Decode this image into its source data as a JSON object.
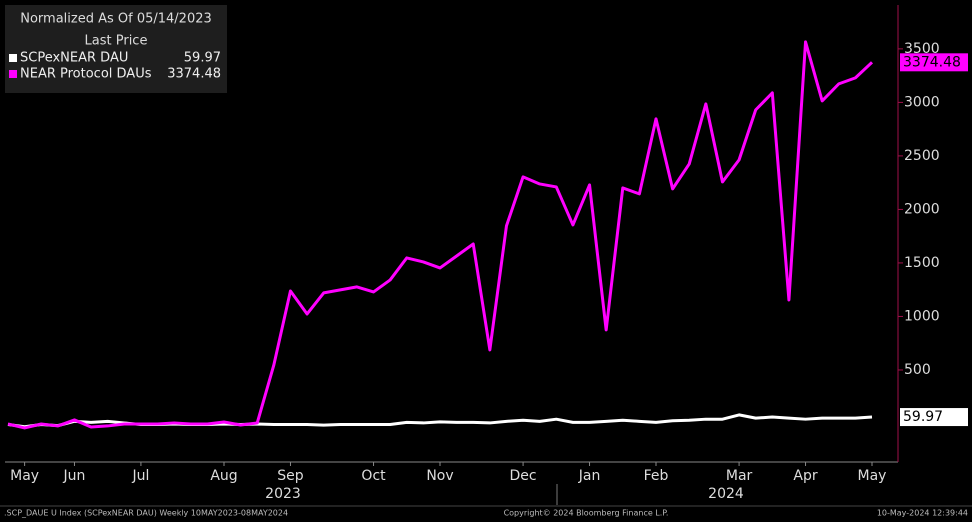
{
  "chart_data": {
    "type": "line",
    "legend_title": "Normalized As Of 05/14/2023",
    "legend_subtitle": "Last Price",
    "categories": [
      null,
      "May",
      null,
      null,
      "Jun",
      null,
      null,
      null,
      "Jul",
      null,
      null,
      null,
      null,
      "Aug",
      null,
      null,
      null,
      "Sep",
      null,
      null,
      null,
      null,
      "Oct",
      null,
      null,
      null,
      "Nov",
      null,
      null,
      null,
      null,
      "Dec",
      null,
      null,
      null,
      "Jan",
      null,
      null,
      null,
      "Feb",
      null,
      null,
      null,
      null,
      "Mar",
      null,
      null,
      null,
      "Apr",
      null,
      null,
      null,
      "May"
    ],
    "year_labels": [
      "2023",
      "2024"
    ],
    "series": [
      {
        "name": "SCPexNEAR DAU",
        "color": "#ffffff",
        "values": [
          -10,
          -30,
          -10,
          -20,
          20,
          10,
          20,
          5,
          -10,
          -10,
          -5,
          -10,
          -10,
          -5,
          -10,
          -5,
          -10,
          -10,
          -10,
          -15,
          -10,
          -10,
          -10,
          -10,
          10,
          5,
          15,
          10,
          10,
          5,
          20,
          30,
          20,
          40,
          10,
          10,
          20,
          30,
          20,
          10,
          25,
          30,
          40,
          40,
          80,
          50,
          60,
          50,
          40,
          50,
          50,
          50,
          59.97
        ]
      },
      {
        "name": "NEAR Protocol DAUs",
        "color": "#ff00ff",
        "values": [
          -5,
          -42,
          -5,
          -23,
          33,
          -33,
          -23,
          -5,
          -5,
          -5,
          5,
          -5,
          -5,
          14,
          -14,
          5,
          547,
          1238,
          1023,
          1220,
          1248,
          1276,
          1229,
          1341,
          1547,
          1509,
          1453,
          1565,
          1677,
          687,
          1846,
          2304,
          2238,
          2210,
          1855,
          2229,
          874,
          2201,
          2145,
          2846,
          2192,
          2425,
          2986,
          2257,
          2463,
          2930,
          3089,
          1154,
          3565,
          3014,
          3173,
          3229,
          3374.48
        ]
      }
    ],
    "ylim": [
      -360,
      3910
    ],
    "yticks": [
      500,
      1000,
      1500,
      2000,
      2500,
      3000,
      3500
    ],
    "footer_left": ".SCP_DAUE U Index (SCPexNEAR DAU)  Weekly 10MAY2023-08MAY2024",
    "footer_center": "Copyright© 2024 Bloomberg Finance L.P.",
    "footer_right": "10-May-2024 12:39:44"
  }
}
